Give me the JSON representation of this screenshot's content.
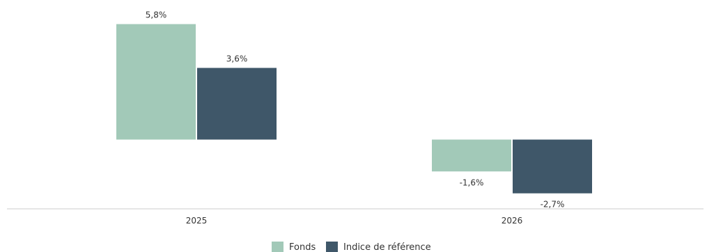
{
  "chart_data": {
    "type": "bar",
    "categories": [
      "2025",
      "2026"
    ],
    "series": [
      {
        "name": "Fonds",
        "values": [
          5.8,
          -1.6
        ],
        "labels": [
          "5,8%",
          "-1,6%"
        ],
        "color": "#a2c9b8"
      },
      {
        "name": "Indice de référence",
        "values": [
          3.6,
          -2.7
        ],
        "labels": [
          "3,6%",
          "-2,7%"
        ],
        "color": "#3f5769"
      }
    ],
    "ylim": [
      -3.4,
      6.2
    ],
    "legend_position": "bottom",
    "grid": false,
    "title": "",
    "xlabel": "",
    "ylabel": ""
  }
}
